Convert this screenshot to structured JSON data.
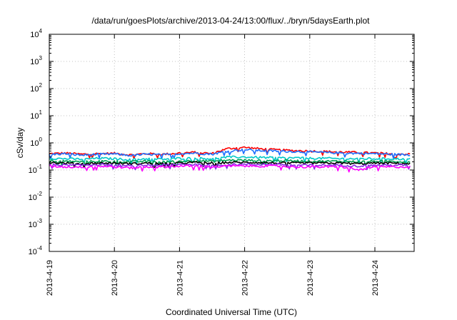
{
  "chart_data": {
    "type": "line",
    "title": "/data/run/goesPlots/archive/2013-04-24/13:00/flux/../bryn/5daysEarth.plot",
    "xlabel": "Coordinated Universal Time (UTC)",
    "ylabel": "cSv/day",
    "yscale": "log",
    "ylim": [
      0.0001,
      10000
    ],
    "xlim": [
      "2013-04-19",
      "2013-04-24 13:00"
    ],
    "x_ticks": [
      "2013-4-19",
      "2013-4-20",
      "2013-4-21",
      "2013-4-22",
      "2013-4-23",
      "2013-4-24"
    ],
    "y_ticks": [
      {
        "base": "10",
        "exp": "-4",
        "value": 0.0001
      },
      {
        "base": "10",
        "exp": "-3",
        "value": 0.001
      },
      {
        "base": "10",
        "exp": "-2",
        "value": 0.01
      },
      {
        "base": "10",
        "exp": "-1",
        "value": 0.1
      },
      {
        "base": "10",
        "exp": "0",
        "value": 1
      },
      {
        "base": "10",
        "exp": "1",
        "value": 10
      },
      {
        "base": "10",
        "exp": "2",
        "value": 100
      },
      {
        "base": "10",
        "exp": "3",
        "value": 1000
      },
      {
        "base": "10",
        "exp": "4",
        "value": 10000
      }
    ],
    "grid": true,
    "legend": "none",
    "x_days": [
      0,
      0.25,
      0.5,
      0.75,
      1,
      1.25,
      1.5,
      1.75,
      2,
      2.25,
      2.5,
      2.75,
      3,
      3.25,
      3.5,
      3.75,
      4,
      4.25,
      4.5,
      4.75,
      5,
      5.25,
      5.54
    ],
    "series": [
      {
        "color": "#ff0000",
        "values": [
          0.4,
          0.42,
          0.38,
          0.4,
          0.41,
          0.36,
          0.4,
          0.38,
          0.42,
          0.45,
          0.4,
          0.62,
          0.68,
          0.6,
          0.55,
          0.52,
          0.5,
          0.48,
          0.46,
          0.44,
          0.42,
          0.4,
          0.38
        ]
      },
      {
        "color": "#1e6fff",
        "values": [
          0.37,
          0.4,
          0.35,
          0.38,
          0.39,
          0.34,
          0.38,
          0.36,
          0.4,
          0.42,
          0.38,
          0.5,
          0.56,
          0.52,
          0.5,
          0.48,
          0.46,
          0.44,
          0.42,
          0.41,
          0.4,
          0.38,
          0.36
        ]
      },
      {
        "color": "#00c8c8",
        "values": [
          0.27,
          0.26,
          0.25,
          0.27,
          0.26,
          0.24,
          0.26,
          0.25,
          0.27,
          0.27,
          0.26,
          0.3,
          0.3,
          0.29,
          0.28,
          0.28,
          0.27,
          0.27,
          0.26,
          0.26,
          0.26,
          0.26,
          0.25
        ]
      },
      {
        "color": "#00a050",
        "values": [
          0.22,
          0.21,
          0.2,
          0.21,
          0.21,
          0.2,
          0.21,
          0.2,
          0.21,
          0.22,
          0.21,
          0.23,
          0.23,
          0.22,
          0.22,
          0.22,
          0.21,
          0.21,
          0.21,
          0.2,
          0.21,
          0.21,
          0.2
        ]
      },
      {
        "color": "#000000",
        "values": [
          0.19,
          0.18,
          0.17,
          0.18,
          0.18,
          0.17,
          0.18,
          0.17,
          0.18,
          0.19,
          0.18,
          0.19,
          0.19,
          0.19,
          0.18,
          0.18,
          0.18,
          0.18,
          0.18,
          0.17,
          0.18,
          0.18,
          0.17
        ]
      },
      {
        "color": "#8a2be2",
        "values": [
          0.16,
          0.15,
          0.15,
          0.16,
          0.15,
          0.14,
          0.15,
          0.15,
          0.16,
          0.16,
          0.15,
          0.16,
          0.16,
          0.16,
          0.16,
          0.15,
          0.15,
          0.15,
          0.15,
          0.14,
          0.15,
          0.15,
          0.15
        ]
      },
      {
        "color": "#ff00ff",
        "values": [
          0.14,
          0.13,
          0.13,
          0.14,
          0.13,
          0.12,
          0.13,
          0.13,
          0.14,
          0.14,
          0.13,
          0.14,
          0.14,
          0.14,
          0.14,
          0.13,
          0.13,
          0.13,
          0.13,
          0.1,
          0.13,
          0.13,
          0.13
        ]
      }
    ]
  }
}
